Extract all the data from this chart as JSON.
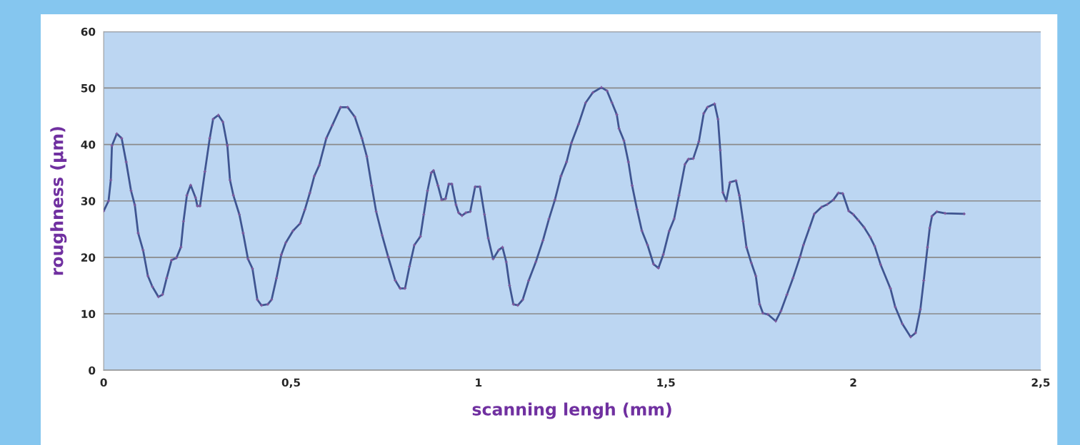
{
  "chart_data": {
    "type": "line",
    "xlabel": "scanning lengh (mm)",
    "ylabel": "roughness (µm)",
    "xlim": [
      0,
      2.5
    ],
    "xticks": [
      0,
      {
        "value": 0.5,
        "label": "0,5"
      },
      1,
      {
        "value": 1.5,
        "label": "1,5"
      },
      2,
      {
        "value": 2.5,
        "label": "2,5"
      }
    ],
    "ylim": [
      0,
      60
    ],
    "yticks": [
      0,
      10,
      20,
      30,
      40,
      50,
      60
    ],
    "grid": "y",
    "marker": "cross",
    "line_style": "solid",
    "series": [
      {
        "color": "#3f5591",
        "x": [
          0,
          0.013,
          0.019,
          0.022,
          0.035,
          0.048,
          0.06,
          0.073,
          0.083,
          0.092,
          0.105,
          0.118,
          0.13,
          0.146,
          0.157,
          0.168,
          0.181,
          0.194,
          0.206,
          0.213,
          0.222,
          0.232,
          0.245,
          0.25,
          0.257,
          0.27,
          0.283,
          0.292,
          0.306,
          0.318,
          0.33,
          0.337,
          0.346,
          0.362,
          0.372,
          0.385,
          0.397,
          0.41,
          0.421,
          0.438,
          0.448,
          0.461,
          0.474,
          0.486,
          0.505,
          0.524,
          0.537,
          0.55,
          0.562,
          0.575,
          0.594,
          0.61,
          0.632,
          0.651,
          0.67,
          0.689,
          0.702,
          0.715,
          0.727,
          0.743,
          0.759,
          0.778,
          0.791,
          0.804,
          0.816,
          0.829,
          0.845,
          0.854,
          0.864,
          0.874,
          0.88,
          0.892,
          0.902,
          0.912,
          0.921,
          0.929,
          0.94,
          0.947,
          0.956,
          0.966,
          0.978,
          0.991,
          1.004,
          1.016,
          1.026,
          1.039,
          1.054,
          1.064,
          1.074,
          1.083,
          1.093,
          1.105,
          1.118,
          1.134,
          1.153,
          1.172,
          1.188,
          1.204,
          1.22,
          1.235,
          1.248,
          1.267,
          1.286,
          1.305,
          1.328,
          1.343,
          1.356,
          1.369,
          1.375,
          1.388,
          1.4,
          1.41,
          1.423,
          1.436,
          1.451,
          1.467,
          1.48,
          1.493,
          1.509,
          1.522,
          1.535,
          1.551,
          1.56,
          1.573,
          1.588,
          1.601,
          1.611,
          1.63,
          1.639,
          1.645,
          1.652,
          1.661,
          1.671,
          1.687,
          1.696,
          1.706,
          1.715,
          1.728,
          1.74,
          1.75,
          1.759,
          1.772,
          1.793,
          1.807,
          1.823,
          1.839,
          1.858,
          1.867,
          1.883,
          1.896,
          1.915,
          1.931,
          1.947,
          1.96,
          1.972,
          1.988,
          2.0,
          2.013,
          2.029,
          2.045,
          2.057,
          2.073,
          2.099,
          2.112,
          2.131,
          2.153,
          2.166,
          2.179,
          2.188,
          2.198,
          2.204,
          2.21,
          2.223,
          2.245,
          2.296
        ],
        "values": [
          28.2,
          30,
          33.7,
          39.8,
          41.9,
          41.1,
          36.9,
          31.8,
          29.3,
          24.3,
          21.3,
          16.7,
          14.8,
          13,
          13.4,
          16.3,
          19.5,
          19.9,
          21.8,
          26.4,
          31,
          32.8,
          30.6,
          29.1,
          29.1,
          35.2,
          41.1,
          44.5,
          45.2,
          44,
          39.8,
          33.7,
          31,
          27.6,
          24.3,
          19.7,
          18,
          12.5,
          11.5,
          11.7,
          12.5,
          16.3,
          20.5,
          22.6,
          24.7,
          26,
          28.5,
          31.4,
          34.4,
          36.3,
          41.1,
          43.4,
          46.6,
          46.6,
          44.9,
          41.1,
          37.9,
          32.7,
          28.1,
          23.9,
          20.1,
          15.9,
          14.5,
          14.5,
          18.4,
          22.2,
          23.7,
          27.6,
          31.8,
          35,
          35.4,
          32.7,
          30.2,
          30.4,
          33,
          33,
          29.3,
          27.9,
          27.4,
          27.9,
          28.1,
          32.5,
          32.5,
          27.6,
          23.4,
          19.7,
          21.3,
          21.8,
          19.2,
          15,
          11.7,
          11.5,
          12.5,
          15.9,
          19.2,
          23,
          26.8,
          30.2,
          34.4,
          36.9,
          40.3,
          43.6,
          47.4,
          49.2,
          50.1,
          49.5,
          47.4,
          45.3,
          42.8,
          40.7,
          36.9,
          32.7,
          28.5,
          24.7,
          22.2,
          18.8,
          18.1,
          20.5,
          24.7,
          26.8,
          31,
          36.5,
          37.4,
          37.5,
          40.5,
          45.5,
          46.6,
          47.2,
          44.5,
          39,
          31.5,
          30,
          33.3,
          33.6,
          31,
          26.4,
          21.8,
          19,
          16.7,
          11.7,
          10.1,
          9.9,
          8.7,
          10.5,
          13.4,
          16.3,
          20.1,
          22.2,
          25.2,
          27.7,
          28.9,
          29.4,
          30.2,
          31.4,
          31.3,
          28.2,
          27.6,
          26.6,
          25.3,
          23.6,
          22,
          18.7,
          14.5,
          11.2,
          8.2,
          5.9,
          6.6,
          10.8,
          15.9,
          21.8,
          25.2,
          27.3,
          28.1,
          27.8,
          27.7
        ]
      }
    ]
  }
}
